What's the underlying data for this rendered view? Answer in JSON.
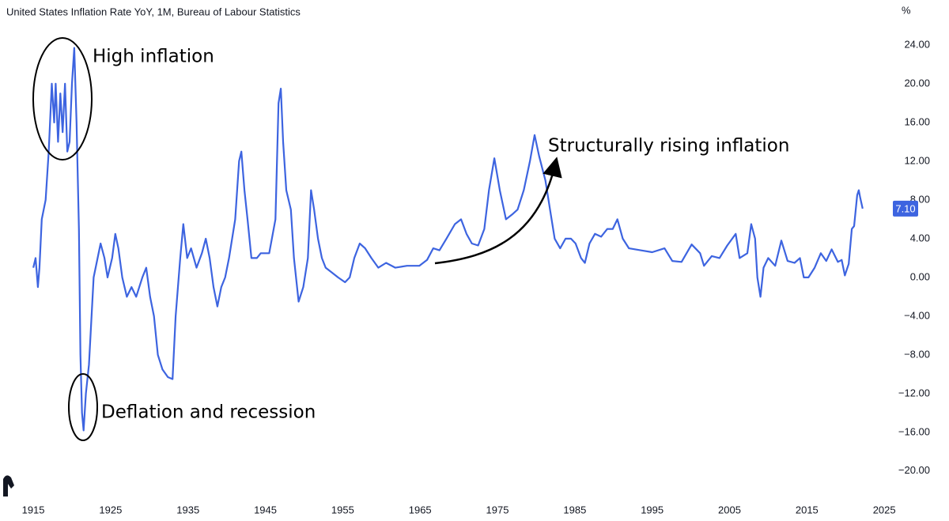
{
  "chart_data": {
    "type": "line",
    "title": "United States Inflation Rate YoY, 1M, Bureau of Labour Statistics",
    "y_unit": "%",
    "color": "#3d64e0",
    "x": [
      1915.0,
      1915.3,
      1915.6,
      1915.8,
      1916.1,
      1916.6,
      1917.0,
      1917.4,
      1917.7,
      1917.9,
      1918.2,
      1918.5,
      1918.8,
      1919.1,
      1919.4,
      1919.7,
      1920.0,
      1920.3,
      1920.6,
      1920.9,
      1921.1,
      1921.3,
      1921.5,
      1921.8,
      1922.2,
      1922.8,
      1923.7,
      1924.2,
      1924.6,
      1925.2,
      1925.6,
      1926.0,
      1926.5,
      1927.1,
      1927.7,
      1928.3,
      1929.1,
      1929.6,
      1930.1,
      1930.6,
      1931.1,
      1931.7,
      1932.4,
      1933.0,
      1933.4,
      1934.0,
      1934.4,
      1934.9,
      1935.4,
      1936.1,
      1936.8,
      1937.3,
      1937.8,
      1938.3,
      1938.8,
      1939.3,
      1939.8,
      1940.3,
      1941.1,
      1941.6,
      1941.9,
      1942.3,
      1942.7,
      1943.2,
      1943.9,
      1944.4,
      1945.5,
      1946.3,
      1946.7,
      1947.0,
      1947.3,
      1947.7,
      1948.3,
      1948.7,
      1949.3,
      1949.9,
      1950.5,
      1950.9,
      1951.3,
      1951.8,
      1952.3,
      1952.8,
      1953.6,
      1954.4,
      1955.3,
      1955.9,
      1956.5,
      1957.2,
      1957.9,
      1958.7,
      1959.6,
      1960.6,
      1961.8,
      1963.3,
      1964.9,
      1965.9,
      1966.7,
      1967.5,
      1968.4,
      1969.5,
      1970.3,
      1971.0,
      1971.7,
      1972.5,
      1973.3,
      1973.9,
      1974.6,
      1975.3,
      1976.1,
      1976.9,
      1977.6,
      1978.4,
      1979.2,
      1979.8,
      1980.4,
      1981.2,
      1981.8,
      1982.4,
      1983.1,
      1983.8,
      1984.5,
      1985.1,
      1985.8,
      1986.3,
      1986.9,
      1987.6,
      1988.4,
      1989.2,
      1989.9,
      1990.5,
      1991.2,
      1992.0,
      1993.5,
      1995.0,
      1996.6,
      1997.6,
      1998.8,
      2000.1,
      2001.2,
      2001.7,
      2002.7,
      2003.7,
      2004.7,
      2005.8,
      2006.3,
      2007.3,
      2007.8,
      2008.3,
      2008.6,
      2009.0,
      2009.4,
      2010.0,
      2010.9,
      2011.7,
      2012.5,
      2013.4,
      2014.1,
      2014.6,
      2015.2,
      2016.0,
      2016.8,
      2017.5,
      2018.2,
      2019.0,
      2019.5,
      2019.9,
      2020.4,
      2020.8,
      2021.1,
      2021.5,
      2021.7,
      2021.9,
      2022.2
    ],
    "values": [
      1.0,
      2.0,
      -1.0,
      1.0,
      6.0,
      8.0,
      13.0,
      20.0,
      16.0,
      20.0,
      14.0,
      19.0,
      15.0,
      20.0,
      13.0,
      14.0,
      20.0,
      23.7,
      16.0,
      5.0,
      -8.0,
      -14.0,
      -15.8,
      -12.0,
      -9.0,
      0.0,
      3.5,
      2.0,
      0.0,
      2.0,
      4.5,
      3.0,
      0.0,
      -2.0,
      -1.0,
      -2.0,
      0.0,
      1.0,
      -2.0,
      -4.0,
      -8.0,
      -9.5,
      -10.3,
      -10.5,
      -4.0,
      2.0,
      5.5,
      2.0,
      3.0,
      1.0,
      2.5,
      4.0,
      2.0,
      -1.0,
      -3.0,
      -1.0,
      0.0,
      2.0,
      6.0,
      12.0,
      13.0,
      9.0,
      6.0,
      2.0,
      2.0,
      2.5,
      2.5,
      6.0,
      18.0,
      19.5,
      14.0,
      9.0,
      7.0,
      2.0,
      -2.5,
      -1.0,
      2.0,
      9.0,
      7.0,
      4.0,
      2.0,
      1.0,
      0.5,
      0.0,
      -0.5,
      0.0,
      2.0,
      3.5,
      3.0,
      2.0,
      1.0,
      1.5,
      1.0,
      1.2,
      1.2,
      1.8,
      3.0,
      2.8,
      4.0,
      5.5,
      6.0,
      4.5,
      3.5,
      3.3,
      5.0,
      9.0,
      12.3,
      9.0,
      6.0,
      6.5,
      7.0,
      9.0,
      12.0,
      14.7,
      12.5,
      10.0,
      7.0,
      4.0,
      3.0,
      4.0,
      4.0,
      3.5,
      2.0,
      1.5,
      3.5,
      4.5,
      4.2,
      5.0,
      5.0,
      6.0,
      4.0,
      3.0,
      2.8,
      2.6,
      3.0,
      1.7,
      1.6,
      3.4,
      2.5,
      1.2,
      2.2,
      2.0,
      3.3,
      4.5,
      2.0,
      2.5,
      5.5,
      4.0,
      0.0,
      -2.0,
      1.0,
      2.0,
      1.2,
      3.8,
      1.7,
      1.5,
      2.0,
      0.0,
      0.0,
      1.0,
      2.5,
      1.7,
      2.9,
      1.6,
      1.8,
      0.2,
      1.4,
      5.0,
      5.3,
      8.5,
      9.0,
      8.2,
      7.1
    ],
    "last_value_label": "7.10",
    "xlim": [
      1910.7,
      2025.7
    ],
    "xticks": [
      1915,
      1925,
      1935,
      1945,
      1955,
      1965,
      1975,
      1985,
      1995,
      2005,
      2015,
      2025
    ],
    "ylim": [
      -23.2,
      26.2
    ],
    "yticks": [
      {
        "value": 24,
        "label": "24.00"
      },
      {
        "value": 20,
        "label": "20.00"
      },
      {
        "value": 16,
        "label": "16.00"
      },
      {
        "value": 12,
        "label": "12.00"
      },
      {
        "value": 8,
        "label": "8.00"
      },
      {
        "value": 4,
        "label": "4.00"
      },
      {
        "value": 0,
        "label": "0.00"
      },
      {
        "value": -4,
        "label": "−4.00"
      },
      {
        "value": -8,
        "label": "−8.00"
      },
      {
        "value": -12,
        "label": "−12.00"
      },
      {
        "value": -16,
        "label": "−16.00"
      },
      {
        "value": -20,
        "label": "−20.00"
      }
    ],
    "annotations": [
      "High inflation",
      "Deflation and recession",
      "Structurally rising inflation"
    ]
  }
}
